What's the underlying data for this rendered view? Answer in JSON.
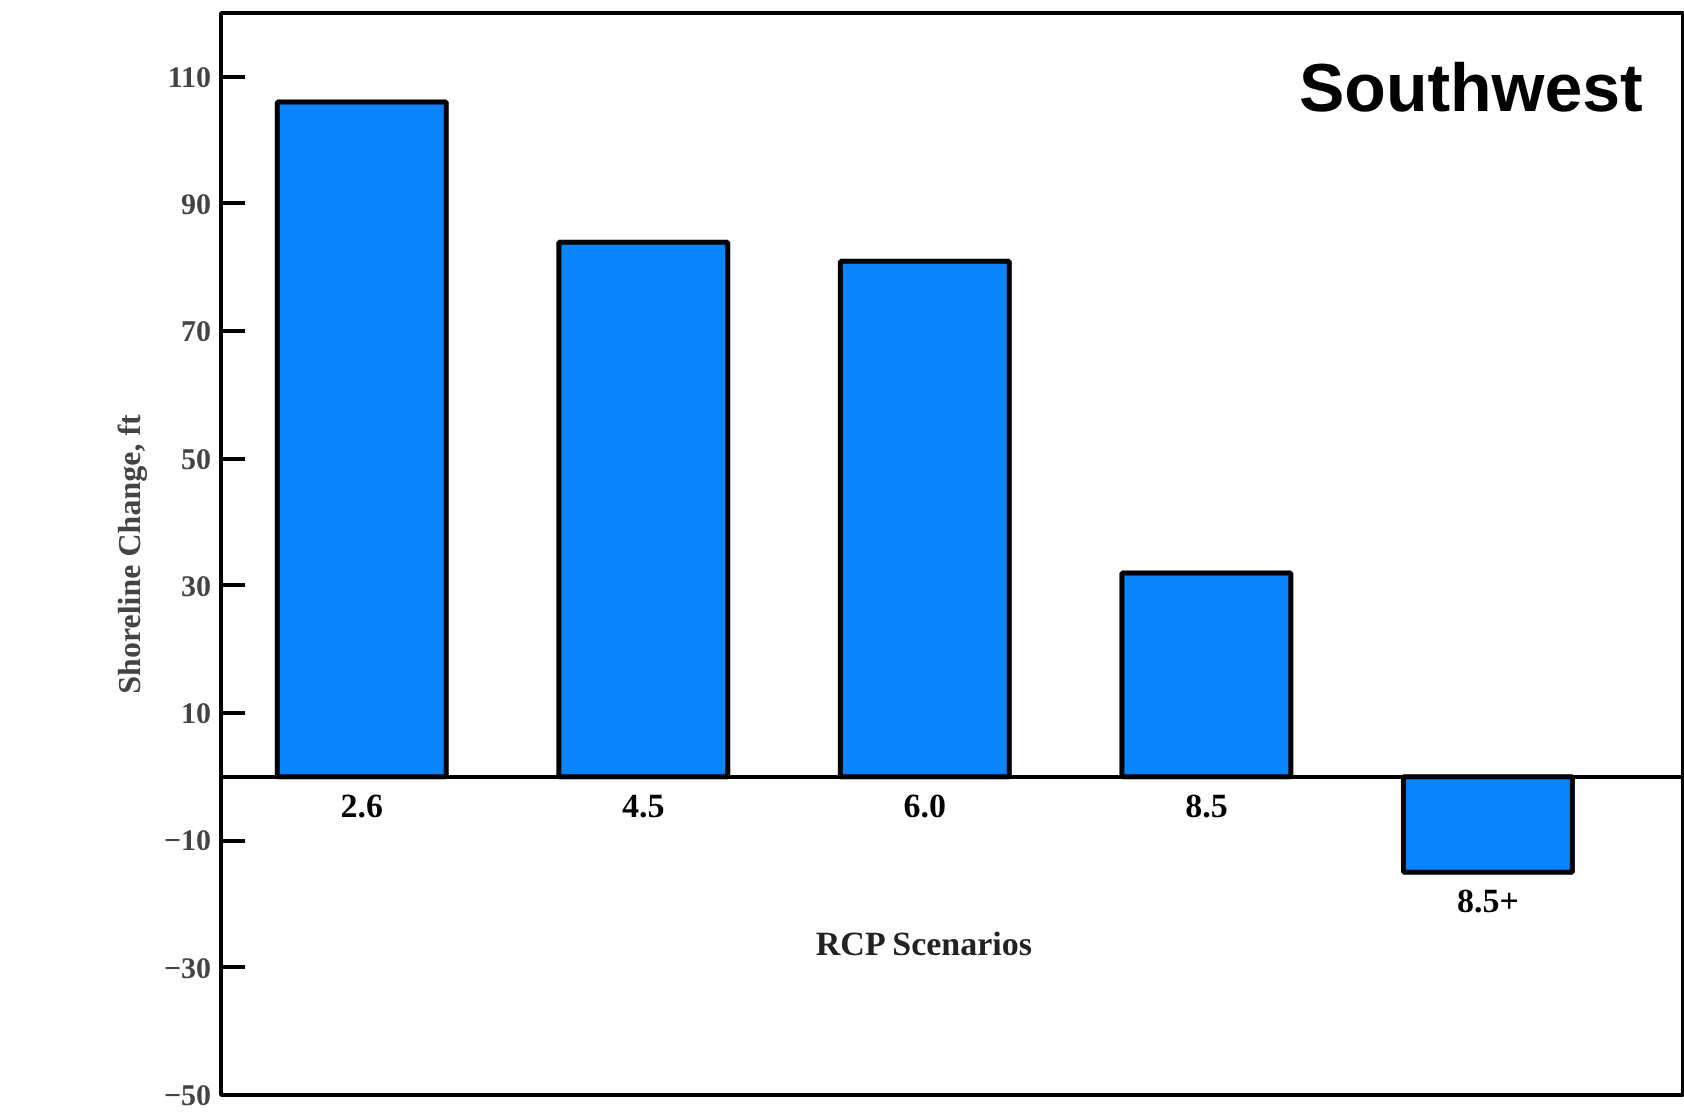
{
  "chart_data": {
    "type": "bar",
    "title": "Southwest",
    "xlabel": "RCP Scenarios",
    "ylabel": "Shoreline Change, ft",
    "categories": [
      "2.6",
      "4.5",
      "6.0",
      "8.5",
      "8.5+"
    ],
    "values": [
      106,
      84,
      81,
      32,
      -15
    ],
    "color": "#0a84fb",
    "ylim": [
      -50,
      120
    ],
    "yticks": [
      -50,
      -30,
      -10,
      10,
      30,
      50,
      70,
      90,
      110
    ],
    "grid": false
  }
}
